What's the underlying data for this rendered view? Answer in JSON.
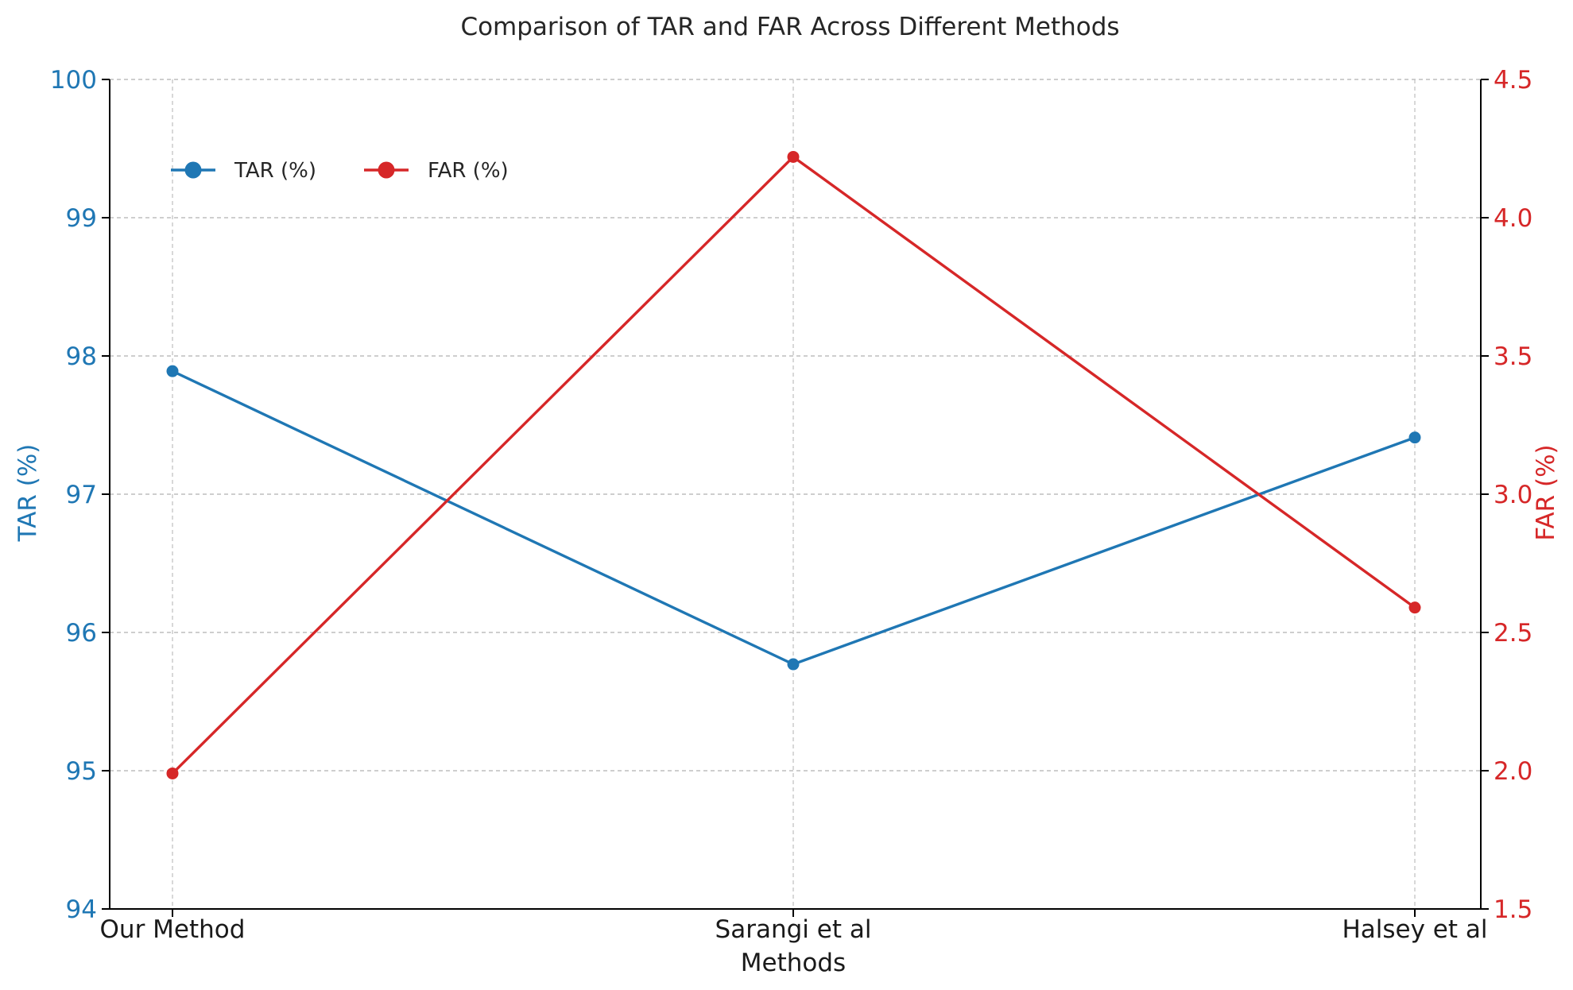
{
  "chart_data": {
    "type": "line",
    "title": "Comparison of TAR and FAR Across Different Methods",
    "xlabel": "Methods",
    "categories": [
      "Our Method",
      "Sarangi et al",
      "Halsey et al"
    ],
    "grid": true,
    "legend_position": "upper-left",
    "left_axis": {
      "label": "TAR (%)",
      "range": [
        94,
        100
      ],
      "ticks": [
        94,
        95,
        96,
        97,
        98,
        99,
        100
      ],
      "tick_labels": [
        "94",
        "95",
        "96",
        "97",
        "98",
        "99",
        "100"
      ],
      "color": "#1f77b4"
    },
    "right_axis": {
      "label": "FAR (%)",
      "range": [
        1.5,
        4.5
      ],
      "ticks": [
        1.5,
        2.0,
        2.5,
        3.0,
        3.5,
        4.0,
        4.5
      ],
      "tick_labels": [
        "1.5",
        "2.0",
        "2.5",
        "3.0",
        "3.5",
        "4.0",
        "4.5"
      ],
      "color": "#d62728"
    },
    "series": [
      {
        "name": "TAR (%)",
        "axis": "left",
        "color": "#1f77b4",
        "values": [
          97.89,
          95.77,
          97.41
        ]
      },
      {
        "name": "FAR (%)",
        "axis": "right",
        "color": "#d62728",
        "values": [
          1.99,
          4.22,
          2.59
        ]
      }
    ]
  }
}
